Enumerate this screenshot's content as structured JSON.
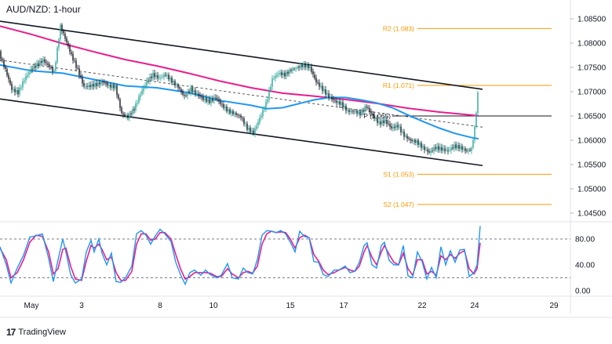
{
  "header": {
    "title": "AUD/NZD: 1-hour"
  },
  "branding": {
    "name": "TradingView"
  },
  "colors": {
    "candle": "#26a69a",
    "candle_down": "#131722",
    "channel": "#131722",
    "sma_fast": "#2196f3",
    "sma_slow": "#e91e8c",
    "levels": "#ff9800",
    "stoch_k": "#2196f3",
    "stoch_d": "#e91e8c"
  },
  "chart_data": [
    {
      "type": "candlestick",
      "title": "AUD/NZD: 1-hour",
      "ylim": [
        1.045,
        1.0875
      ],
      "x_ticks": [
        "May",
        "3",
        "8",
        "10",
        "15",
        "17",
        "22",
        "24",
        "29"
      ],
      "y_ticks": [
        "1.08500",
        "1.08000",
        "1.07500",
        "1.07000",
        "1.06500",
        "1.06000",
        "1.05500",
        "1.05000",
        "1.04500"
      ],
      "levels": [
        {
          "name": "R2",
          "label": "R2 (1.083)",
          "value": 1.083
        },
        {
          "name": "R1",
          "label": "R1 (1.071)",
          "value": 1.0713
        },
        {
          "name": "P",
          "label": "P (1.065)",
          "value": 1.065
        },
        {
          "name": "S1",
          "label": "S1 (1.053)",
          "value": 1.053
        },
        {
          "name": "S2",
          "label": "S2 (1.047)",
          "value": 1.0468
        }
      ],
      "channel": {
        "upper": [
          {
            "x": 0,
            "y": 1.0845
          },
          {
            "x": 615,
            "y": 1.0705
          }
        ],
        "lower": [
          {
            "x": 0,
            "y": 1.0685
          },
          {
            "x": 615,
            "y": 1.0548
          }
        ],
        "mid": [
          {
            "x": 0,
            "y": 1.0765
          },
          {
            "x": 615,
            "y": 1.0627
          }
        ]
      },
      "price": [
        [
          0,
          1.078
        ],
        [
          8,
          1.0745
        ],
        [
          16,
          1.0705
        ],
        [
          24,
          1.0698
        ],
        [
          32,
          1.0725
        ],
        [
          40,
          1.0745
        ],
        [
          48,
          1.0755
        ],
        [
          56,
          1.0765
        ],
        [
          64,
          1.0752
        ],
        [
          70,
          1.074
        ],
        [
          78,
          1.0835
        ],
        [
          84,
          1.081
        ],
        [
          92,
          1.0775
        ],
        [
          100,
          1.0745
        ],
        [
          108,
          1.071
        ],
        [
          116,
          1.0712
        ],
        [
          124,
          1.0715
        ],
        [
          132,
          1.072
        ],
        [
          140,
          1.0712
        ],
        [
          148,
          1.071
        ],
        [
          156,
          1.0655
        ],
        [
          164,
          1.0648
        ],
        [
          172,
          1.0665
        ],
        [
          180,
          1.0695
        ],
        [
          188,
          1.072
        ],
        [
          196,
          1.0735
        ],
        [
          204,
          1.0728
        ],
        [
          212,
          1.0735
        ],
        [
          220,
          1.0722
        ],
        [
          228,
          1.071
        ],
        [
          236,
          1.069
        ],
        [
          244,
          1.0705
        ],
        [
          252,
          1.0695
        ],
        [
          260,
          1.0685
        ],
        [
          268,
          1.068
        ],
        [
          276,
          1.0688
        ],
        [
          284,
          1.0672
        ],
        [
          292,
          1.066
        ],
        [
          300,
          1.0655
        ],
        [
          308,
          1.0648
        ],
        [
          316,
          1.0625
        ],
        [
          324,
          1.0615
        ],
        [
          332,
          1.0645
        ],
        [
          340,
          1.0675
        ],
        [
          348,
          1.0725
        ],
        [
          356,
          1.0738
        ],
        [
          364,
          1.0735
        ],
        [
          372,
          1.0745
        ],
        [
          380,
          1.075
        ],
        [
          388,
          1.0755
        ],
        [
          396,
          1.075
        ],
        [
          404,
          1.072
        ],
        [
          412,
          1.0705
        ],
        [
          420,
          1.069
        ],
        [
          428,
          1.068
        ],
        [
          436,
          1.0675
        ],
        [
          444,
          1.066
        ],
        [
          452,
          1.066
        ],
        [
          460,
          1.0655
        ],
        [
          468,
          1.067
        ],
        [
          476,
          1.065
        ],
        [
          484,
          1.0635
        ],
        [
          492,
          1.064
        ],
        [
          500,
          1.0625
        ],
        [
          508,
          1.063
        ],
        [
          516,
          1.061
        ],
        [
          524,
          1.06
        ],
        [
          532,
          1.0597
        ],
        [
          540,
          1.0585
        ],
        [
          548,
          1.0575
        ],
        [
          556,
          1.0585
        ],
        [
          564,
          1.0582
        ],
        [
          572,
          1.0578
        ],
        [
          580,
          1.0588
        ],
        [
          588,
          1.0585
        ],
        [
          596,
          1.0578
        ],
        [
          602,
          1.0582
        ],
        [
          606,
          1.0625
        ],
        [
          610,
          1.0695
        ]
      ],
      "sma_fast": [
        [
          0,
          1.0755
        ],
        [
          40,
          1.0743
        ],
        [
          80,
          1.0738
        ],
        [
          120,
          1.0725
        ],
        [
          160,
          1.0712
        ],
        [
          200,
          1.0708
        ],
        [
          240,
          1.0698
        ],
        [
          280,
          1.0682
        ],
        [
          320,
          1.0672
        ],
        [
          340,
          1.0665
        ],
        [
          360,
          1.0667
        ],
        [
          380,
          1.0675
        ],
        [
          400,
          1.0683
        ],
        [
          420,
          1.0688
        ],
        [
          440,
          1.0688
        ],
        [
          460,
          1.0683
        ],
        [
          480,
          1.0677
        ],
        [
          500,
          1.0667
        ],
        [
          520,
          1.0652
        ],
        [
          540,
          1.0638
        ],
        [
          560,
          1.0625
        ],
        [
          580,
          1.0614
        ],
        [
          600,
          1.0606
        ],
        [
          610,
          1.0603
        ]
      ],
      "sma_slow": [
        [
          0,
          1.0835
        ],
        [
          40,
          1.0818
        ],
        [
          80,
          1.0799
        ],
        [
          120,
          1.0782
        ],
        [
          160,
          1.0766
        ],
        [
          200,
          1.0753
        ],
        [
          240,
          1.0738
        ],
        [
          280,
          1.0722
        ],
        [
          320,
          1.0708
        ],
        [
          360,
          1.0697
        ],
        [
          400,
          1.0691
        ],
        [
          440,
          1.0684
        ],
        [
          480,
          1.0676
        ],
        [
          520,
          1.0666
        ],
        [
          560,
          1.0658
        ],
        [
          600,
          1.0652
        ],
        [
          610,
          1.065
        ]
      ],
      "stochastic": {
        "ylim": [
          0,
          100
        ],
        "y_ticks": [
          "80.00",
          "40.00",
          "0.00"
        ],
        "upper_line": 80,
        "lower_line": 20,
        "k": [
          [
            0,
            68
          ],
          [
            8,
            40
          ],
          [
            14,
            12
          ],
          [
            22,
            35
          ],
          [
            30,
            55
          ],
          [
            38,
            83
          ],
          [
            46,
            85
          ],
          [
            54,
            88
          ],
          [
            62,
            50
          ],
          [
            68,
            14
          ],
          [
            74,
            48
          ],
          [
            80,
            80
          ],
          [
            84,
            60
          ],
          [
            90,
            25
          ],
          [
            96,
            12
          ],
          [
            104,
            18
          ],
          [
            110,
            60
          ],
          [
            116,
            78
          ],
          [
            120,
            60
          ],
          [
            126,
            80
          ],
          [
            130,
            58
          ],
          [
            136,
            40
          ],
          [
            142,
            58
          ],
          [
            148,
            14
          ],
          [
            154,
            13
          ],
          [
            160,
            20
          ],
          [
            168,
            38
          ],
          [
            174,
            88
          ],
          [
            180,
            93
          ],
          [
            186,
            86
          ],
          [
            192,
            72
          ],
          [
            198,
            85
          ],
          [
            204,
            95
          ],
          [
            210,
            88
          ],
          [
            218,
            76
          ],
          [
            224,
            44
          ],
          [
            230,
            25
          ],
          [
            236,
            10
          ],
          [
            242,
            28
          ],
          [
            248,
            32
          ],
          [
            256,
            24
          ],
          [
            262,
            32
          ],
          [
            268,
            25
          ],
          [
            276,
            20
          ],
          [
            282,
            24
          ],
          [
            290,
            42
          ],
          [
            296,
            20
          ],
          [
            304,
            18
          ],
          [
            310,
            35
          ],
          [
            316,
            28
          ],
          [
            322,
            26
          ],
          [
            328,
            48
          ],
          [
            334,
            86
          ],
          [
            340,
            93
          ],
          [
            346,
            92
          ],
          [
            352,
            90
          ],
          [
            358,
            93
          ],
          [
            364,
            88
          ],
          [
            370,
            75
          ],
          [
            376,
            60
          ],
          [
            382,
            92
          ],
          [
            388,
            84
          ],
          [
            394,
            82
          ],
          [
            400,
            45
          ],
          [
            406,
            44
          ],
          [
            412,
            25
          ],
          [
            418,
            22
          ],
          [
            426,
            32
          ],
          [
            432,
            32
          ],
          [
            440,
            38
          ],
          [
            446,
            28
          ],
          [
            452,
            30
          ],
          [
            458,
            44
          ],
          [
            464,
            70
          ],
          [
            468,
            74
          ],
          [
            474,
            40
          ],
          [
            480,
            35
          ],
          [
            486,
            70
          ],
          [
            490,
            75
          ],
          [
            496,
            47
          ],
          [
            502,
            40
          ],
          [
            508,
            40
          ],
          [
            514,
            70
          ],
          [
            520,
            23
          ],
          [
            526,
            20
          ],
          [
            532,
            60
          ],
          [
            538,
            45
          ],
          [
            544,
            18
          ],
          [
            550,
            36
          ],
          [
            556,
            20
          ],
          [
            562,
            68
          ],
          [
            568,
            40
          ],
          [
            574,
            62
          ],
          [
            580,
            44
          ],
          [
            586,
            63
          ],
          [
            592,
            64
          ],
          [
            598,
            22
          ],
          [
            604,
            28
          ],
          [
            608,
            40
          ],
          [
            612,
            100
          ]
        ],
        "d": [
          [
            0,
            66
          ],
          [
            8,
            48
          ],
          [
            14,
            20
          ],
          [
            22,
            28
          ],
          [
            30,
            48
          ],
          [
            38,
            75
          ],
          [
            46,
            86
          ],
          [
            54,
            84
          ],
          [
            62,
            60
          ],
          [
            68,
            26
          ],
          [
            74,
            34
          ],
          [
            80,
            64
          ],
          [
            84,
            66
          ],
          [
            90,
            38
          ],
          [
            96,
            18
          ],
          [
            104,
            16
          ],
          [
            110,
            46
          ],
          [
            116,
            70
          ],
          [
            120,
            66
          ],
          [
            126,
            72
          ],
          [
            130,
            64
          ],
          [
            136,
            48
          ],
          [
            142,
            52
          ],
          [
            148,
            28
          ],
          [
            154,
            16
          ],
          [
            160,
            16
          ],
          [
            168,
            30
          ],
          [
            174,
            72
          ],
          [
            180,
            88
          ],
          [
            186,
            88
          ],
          [
            192,
            78
          ],
          [
            198,
            80
          ],
          [
            204,
            90
          ],
          [
            210,
            90
          ],
          [
            218,
            80
          ],
          [
            224,
            56
          ],
          [
            230,
            34
          ],
          [
            236,
            18
          ],
          [
            242,
            22
          ],
          [
            248,
            28
          ],
          [
            256,
            28
          ],
          [
            262,
            28
          ],
          [
            268,
            27
          ],
          [
            276,
            22
          ],
          [
            282,
            22
          ],
          [
            290,
            34
          ],
          [
            296,
            26
          ],
          [
            304,
            20
          ],
          [
            310,
            28
          ],
          [
            316,
            30
          ],
          [
            322,
            27
          ],
          [
            328,
            38
          ],
          [
            334,
            72
          ],
          [
            340,
            88
          ],
          [
            346,
            92
          ],
          [
            352,
            90
          ],
          [
            358,
            91
          ],
          [
            364,
            90
          ],
          [
            370,
            80
          ],
          [
            376,
            66
          ],
          [
            382,
            82
          ],
          [
            388,
            86
          ],
          [
            394,
            82
          ],
          [
            400,
            56
          ],
          [
            406,
            46
          ],
          [
            412,
            32
          ],
          [
            418,
            25
          ],
          [
            426,
            28
          ],
          [
            432,
            32
          ],
          [
            440,
            36
          ],
          [
            446,
            32
          ],
          [
            452,
            30
          ],
          [
            458,
            38
          ],
          [
            464,
            60
          ],
          [
            468,
            70
          ],
          [
            474,
            52
          ],
          [
            480,
            40
          ],
          [
            486,
            60
          ],
          [
            490,
            70
          ],
          [
            496,
            56
          ],
          [
            502,
            44
          ],
          [
            508,
            40
          ],
          [
            514,
            58
          ],
          [
            520,
            34
          ],
          [
            526,
            24
          ],
          [
            532,
            48
          ],
          [
            538,
            48
          ],
          [
            544,
            26
          ],
          [
            550,
            30
          ],
          [
            556,
            24
          ],
          [
            562,
            54
          ],
          [
            568,
            48
          ],
          [
            574,
            56
          ],
          [
            580,
            50
          ],
          [
            586,
            58
          ],
          [
            592,
            62
          ],
          [
            598,
            34
          ],
          [
            604,
            26
          ],
          [
            608,
            34
          ],
          [
            612,
            74
          ]
        ]
      }
    }
  ]
}
